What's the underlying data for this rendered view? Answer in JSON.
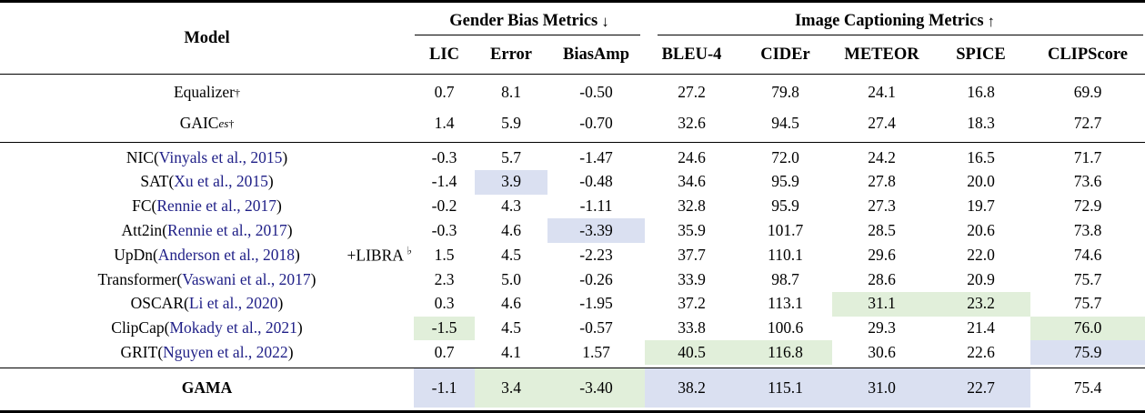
{
  "header": {
    "model_label": "Model",
    "groups": [
      {
        "label": "Gender Bias Metrics",
        "arrow": "↓",
        "cols": [
          "LIC",
          "Error",
          "BiasAmp"
        ]
      },
      {
        "label": "Image Captioning Metrics",
        "arrow": "↑",
        "cols": [
          "BLEU-4",
          "CIDEr",
          "METEOR",
          "SPICE",
          "CLIPScore"
        ]
      }
    ]
  },
  "format": {
    "cite_prefix": " (",
    "cite_suffix": ")"
  },
  "colors": {
    "highlight_blue": "#dae0f1",
    "highlight_green": "#e1efda",
    "citation": "#1f1f87"
  },
  "sections": [
    {
      "name": "prior-debiasing",
      "rows": [
        {
          "model": "Equalizer",
          "sup": "†",
          "values": [
            "0.7",
            "8.1",
            "-0.50",
            "27.2",
            "79.8",
            "24.1",
            "16.8",
            "69.9"
          ],
          "hl": [
            "",
            "",
            "",
            "",
            "",
            "",
            "",
            ""
          ]
        },
        {
          "model": "GAIC",
          "model_sub": "es",
          "sup": "†",
          "values": [
            "1.4",
            "5.9",
            "-0.70",
            "32.6",
            "94.5",
            "27.4",
            "18.3",
            "72.7"
          ],
          "hl": [
            "",
            "",
            "",
            "",
            "",
            "",
            "",
            ""
          ]
        }
      ]
    },
    {
      "name": "libra-captioners",
      "rows": [
        {
          "model": "NIC",
          "cite": "Vinyals et al., 2015",
          "values": [
            "-0.3",
            "5.7",
            "-1.47",
            "24.6",
            "72.0",
            "24.2",
            "16.5",
            "71.7"
          ],
          "hl": [
            "",
            "",
            "",
            "",
            "",
            "",
            "",
            ""
          ]
        },
        {
          "model": "SAT",
          "cite": "Xu et al., 2015",
          "values": [
            "-1.4",
            "3.9",
            "-0.48",
            "34.6",
            "95.9",
            "27.8",
            "20.0",
            "73.6"
          ],
          "hl": [
            "",
            "b",
            "",
            "",
            "",
            "",
            "",
            ""
          ]
        },
        {
          "model": "FC",
          "cite": "Rennie et al., 2017",
          "values": [
            "-0.2",
            "4.3",
            "-1.11",
            "32.8",
            "95.9",
            "27.3",
            "19.7",
            "72.9"
          ],
          "hl": [
            "",
            "",
            "",
            "",
            "",
            "",
            "",
            ""
          ]
        },
        {
          "model": "Att2in",
          "cite": "Rennie et al., 2017",
          "values": [
            "-0.3",
            "4.6",
            "-3.39",
            "35.9",
            "101.7",
            "28.5",
            "20.6",
            "73.8"
          ],
          "hl": [
            "",
            "",
            "b",
            "",
            "",
            "",
            "",
            ""
          ]
        },
        {
          "model": "UpDn",
          "cite": "Anderson et al., 2018",
          "note": {
            "text": "+LIBRA",
            "sup": "♭"
          },
          "values": [
            "1.5",
            "4.5",
            "-2.23",
            "37.7",
            "110.1",
            "29.6",
            "22.0",
            "74.6"
          ],
          "hl": [
            "",
            "",
            "",
            "",
            "",
            "",
            "",
            ""
          ]
        },
        {
          "model": "Transformer",
          "cite": "Vaswani et al., 2017",
          "values": [
            "2.3",
            "5.0",
            "-0.26",
            "33.9",
            "98.7",
            "28.6",
            "20.9",
            "75.7"
          ],
          "hl": [
            "",
            "",
            "",
            "",
            "",
            "",
            "",
            ""
          ]
        },
        {
          "model": "OSCAR",
          "cite": "Li et al., 2020",
          "values": [
            "0.3",
            "4.6",
            "-1.95",
            "37.2",
            "113.1",
            "31.1",
            "23.2",
            "75.7"
          ],
          "hl": [
            "",
            "",
            "",
            "",
            "",
            "g",
            "g",
            ""
          ]
        },
        {
          "model": "ClipCap",
          "cite": "Mokady et al., 2021",
          "values": [
            "-1.5",
            "4.5",
            "-0.57",
            "33.8",
            "100.6",
            "29.3",
            "21.4",
            "76.0"
          ],
          "hl": [
            "g",
            "",
            "",
            "",
            "",
            "",
            "",
            "g"
          ]
        },
        {
          "model": "GRIT",
          "cite": "Nguyen et al., 2022",
          "values": [
            "0.7",
            "4.1",
            "1.57",
            "40.5",
            "116.8",
            "30.6",
            "22.6",
            "75.9"
          ],
          "hl": [
            "",
            "",
            "",
            "g",
            "g",
            "",
            "",
            "b"
          ]
        }
      ]
    },
    {
      "name": "ours",
      "rows": [
        {
          "model": "GAMA",
          "bold": true,
          "values": [
            "-1.1",
            "3.4",
            "-3.40",
            "38.2",
            "115.1",
            "31.0",
            "22.7",
            "75.4"
          ],
          "hl": [
            "b",
            "g",
            "g",
            "b",
            "b",
            "b",
            "b",
            ""
          ]
        }
      ]
    }
  ]
}
